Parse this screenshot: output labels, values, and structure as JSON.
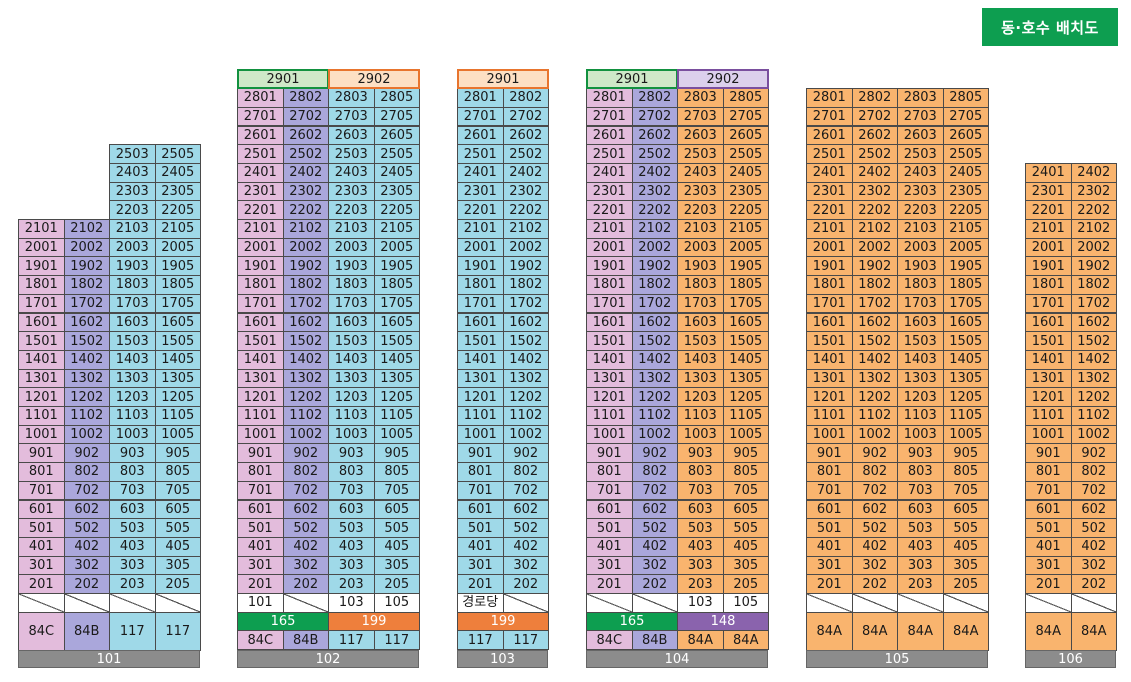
{
  "legend_title": "동·호수 배치도",
  "buildings": [
    {
      "id": "101",
      "name": "101",
      "top_labels": [],
      "columns": [
        {
          "color": "pink",
          "units": [
            "2101",
            "2001",
            "1901",
            "1801",
            "1701",
            "1601",
            "1501",
            "1401",
            "1301",
            "1201",
            "1101",
            "1001",
            "901",
            "801",
            "701",
            "601",
            "501",
            "401",
            "301",
            "201",
            ""
          ],
          "type": "84C"
        },
        {
          "color": "purple",
          "units": [
            "2102",
            "2002",
            "1902",
            "1802",
            "1702",
            "1602",
            "1502",
            "1402",
            "1302",
            "1202",
            "1102",
            "1002",
            "902",
            "802",
            "702",
            "602",
            "502",
            "402",
            "302",
            "202",
            ""
          ],
          "type": "84B"
        },
        {
          "color": "blue",
          "units": [
            "2503",
            "2403",
            "2303",
            "2203",
            "2103",
            "2003",
            "1903",
            "1803",
            "1703",
            "1603",
            "1503",
            "1403",
            "1303",
            "1203",
            "1103",
            "1003",
            "903",
            "803",
            "703",
            "603",
            "503",
            "403",
            "303",
            "203",
            ""
          ],
          "type": "117"
        },
        {
          "color": "blue",
          "units": [
            "2505",
            "2405",
            "2305",
            "2205",
            "2105",
            "2005",
            "1905",
            "1805",
            "1705",
            "1605",
            "1505",
            "1405",
            "1305",
            "1205",
            "1105",
            "1005",
            "905",
            "805",
            "705",
            "605",
            "505",
            "405",
            "305",
            "205",
            ""
          ],
          "type": "117"
        }
      ],
      "bars": []
    },
    {
      "id": "102",
      "name": "102",
      "top_labels": [
        {
          "text": "2901",
          "style": "gnum fill-green",
          "span": 2
        },
        {
          "text": "2902",
          "style": "onum fill-orange",
          "span": 2
        }
      ],
      "columns": [
        {
          "color": "pink",
          "units": [
            "2801",
            "2701",
            "2601",
            "2501",
            "2401",
            "2301",
            "2201",
            "2101",
            "2001",
            "1901",
            "1801",
            "1701",
            "1601",
            "1501",
            "1401",
            "1301",
            "1201",
            "1101",
            "1001",
            "901",
            "801",
            "701",
            "601",
            "501",
            "401",
            "301",
            "201",
            "101"
          ],
          "type": "84C"
        },
        {
          "color": "purple",
          "units": [
            "2802",
            "2702",
            "2602",
            "2502",
            "2402",
            "2302",
            "2202",
            "2102",
            "2002",
            "1902",
            "1802",
            "1702",
            "1602",
            "1502",
            "1402",
            "1302",
            "1202",
            "1102",
            "1002",
            "902",
            "802",
            "702",
            "602",
            "502",
            "402",
            "302",
            "202",
            ""
          ],
          "type": "84B"
        },
        {
          "color": "blue",
          "units": [
            "2803",
            "2703",
            "2603",
            "2503",
            "2403",
            "2303",
            "2203",
            "2103",
            "2003",
            "1903",
            "1803",
            "1703",
            "1603",
            "1503",
            "1403",
            "1303",
            "1203",
            "1103",
            "1003",
            "903",
            "803",
            "703",
            "603",
            "503",
            "403",
            "303",
            "203",
            "103"
          ],
          "type": "117"
        },
        {
          "color": "blue",
          "units": [
            "2805",
            "2705",
            "2605",
            "2505",
            "2405",
            "2305",
            "2205",
            "2105",
            "2005",
            "1905",
            "1805",
            "1705",
            "1605",
            "1505",
            "1405",
            "1305",
            "1205",
            "1105",
            "1005",
            "905",
            "805",
            "705",
            "605",
            "505",
            "405",
            "305",
            "205",
            "105"
          ],
          "type": "117"
        }
      ],
      "bars": [
        {
          "text": "165",
          "style": "green",
          "span": 2
        },
        {
          "text": "199",
          "style": "orange",
          "span": 2
        }
      ]
    },
    {
      "id": "103",
      "name": "103",
      "top_labels": [
        {
          "text": "2901",
          "style": "onum fill-orange",
          "span": 2
        }
      ],
      "columns": [
        {
          "color": "blue",
          "units": [
            "2801",
            "2701",
            "2601",
            "2501",
            "2401",
            "2301",
            "2201",
            "2101",
            "2001",
            "1901",
            "1801",
            "1701",
            "1601",
            "1501",
            "1401",
            "1301",
            "1201",
            "1101",
            "1001",
            "901",
            "801",
            "701",
            "601",
            "501",
            "401",
            "301",
            "201",
            "경로당"
          ],
          "type": "117"
        },
        {
          "color": "blue",
          "units": [
            "2802",
            "2702",
            "2602",
            "2502",
            "2402",
            "2302",
            "2202",
            "2102",
            "2002",
            "1902",
            "1802",
            "1702",
            "1602",
            "1502",
            "1402",
            "1302",
            "1202",
            "1102",
            "1002",
            "902",
            "802",
            "702",
            "602",
            "502",
            "402",
            "302",
            "202",
            ""
          ],
          "type": "117"
        }
      ],
      "bars": [
        {
          "text": "199",
          "style": "orange",
          "span": 2
        }
      ]
    },
    {
      "id": "104",
      "name": "104",
      "top_labels": [
        {
          "text": "2901",
          "style": "gnum fill-green",
          "span": 2
        },
        {
          "text": "2902",
          "style": "pnum fill-purple",
          "span": 2
        }
      ],
      "columns": [
        {
          "color": "pink",
          "units": [
            "2801",
            "2701",
            "2601",
            "2501",
            "2401",
            "2301",
            "2201",
            "2101",
            "2001",
            "1901",
            "1801",
            "1701",
            "1601",
            "1501",
            "1401",
            "1301",
            "1201",
            "1101",
            "1001",
            "901",
            "801",
            "701",
            "601",
            "501",
            "401",
            "301",
            "201",
            ""
          ],
          "type": "84C"
        },
        {
          "color": "purple",
          "units": [
            "2802",
            "2702",
            "2602",
            "2502",
            "2402",
            "2302",
            "2202",
            "2102",
            "2002",
            "1902",
            "1802",
            "1702",
            "1602",
            "1502",
            "1402",
            "1302",
            "1202",
            "1102",
            "1002",
            "902",
            "802",
            "702",
            "602",
            "502",
            "402",
            "302",
            "202",
            ""
          ],
          "type": "84B"
        },
        {
          "color": "orange",
          "units": [
            "2803",
            "2703",
            "2603",
            "2503",
            "2403",
            "2303",
            "2203",
            "2103",
            "2003",
            "1903",
            "1803",
            "1703",
            "1603",
            "1503",
            "1403",
            "1303",
            "1203",
            "1103",
            "1003",
            "903",
            "803",
            "703",
            "603",
            "503",
            "403",
            "303",
            "203",
            "103"
          ],
          "type": "84A"
        },
        {
          "color": "orange",
          "units": [
            "2805",
            "2705",
            "2605",
            "2505",
            "2405",
            "2305",
            "2205",
            "2105",
            "2005",
            "1905",
            "1805",
            "1705",
            "1605",
            "1505",
            "1405",
            "1305",
            "1205",
            "1105",
            "1005",
            "905",
            "805",
            "705",
            "605",
            "505",
            "405",
            "305",
            "205",
            "105"
          ],
          "type": "84A"
        }
      ],
      "bars": [
        {
          "text": "165",
          "style": "green",
          "span": 2
        },
        {
          "text": "148",
          "style": "violet",
          "span": 2
        }
      ]
    },
    {
      "id": "105",
      "name": "105",
      "top_labels": [],
      "columns": [
        {
          "color": "orange",
          "units": [
            "2801",
            "2701",
            "2601",
            "2501",
            "2401",
            "2301",
            "2201",
            "2101",
            "2001",
            "1901",
            "1801",
            "1701",
            "1601",
            "1501",
            "1401",
            "1301",
            "1201",
            "1101",
            "1001",
            "901",
            "801",
            "701",
            "601",
            "501",
            "401",
            "301",
            "201",
            ""
          ],
          "type": "84A"
        },
        {
          "color": "orange",
          "units": [
            "2802",
            "2702",
            "2602",
            "2502",
            "2402",
            "2302",
            "2202",
            "2102",
            "2002",
            "1902",
            "1802",
            "1702",
            "1602",
            "1502",
            "1402",
            "1302",
            "1202",
            "1102",
            "1002",
            "902",
            "802",
            "702",
            "602",
            "502",
            "402",
            "302",
            "202",
            ""
          ],
          "type": "84A"
        },
        {
          "color": "orange",
          "units": [
            "2803",
            "2703",
            "2603",
            "2503",
            "2403",
            "2303",
            "2203",
            "2103",
            "2003",
            "1903",
            "1803",
            "1703",
            "1603",
            "1503",
            "1403",
            "1303",
            "1203",
            "1103",
            "1003",
            "903",
            "803",
            "703",
            "603",
            "503",
            "403",
            "303",
            "203",
            ""
          ],
          "type": "84A"
        },
        {
          "color": "orange",
          "units": [
            "2805",
            "2705",
            "2605",
            "2505",
            "2405",
            "2305",
            "2205",
            "2105",
            "2005",
            "1905",
            "1805",
            "1705",
            "1605",
            "1505",
            "1405",
            "1305",
            "1205",
            "1105",
            "1005",
            "905",
            "805",
            "705",
            "605",
            "505",
            "405",
            "305",
            "205",
            ""
          ],
          "type": "84A"
        }
      ],
      "bars": []
    },
    {
      "id": "106",
      "name": "106",
      "top_labels": [],
      "columns": [
        {
          "color": "orange",
          "units": [
            "2401",
            "2301",
            "2201",
            "2101",
            "2001",
            "1901",
            "1801",
            "1701",
            "1601",
            "1501",
            "1401",
            "1301",
            "1201",
            "1101",
            "1001",
            "901",
            "801",
            "701",
            "601",
            "501",
            "401",
            "301",
            "201",
            ""
          ],
          "type": "84A"
        },
        {
          "color": "orange",
          "units": [
            "2402",
            "2302",
            "2202",
            "2102",
            "2002",
            "1902",
            "1802",
            "1702",
            "1602",
            "1502",
            "1402",
            "1302",
            "1202",
            "1102",
            "1002",
            "902",
            "802",
            "702",
            "602",
            "502",
            "402",
            "302",
            "202",
            ""
          ],
          "type": "84A"
        }
      ],
      "bars": []
    }
  ]
}
